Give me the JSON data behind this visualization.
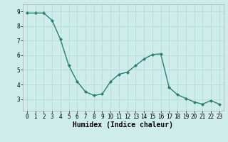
{
  "x": [
    0,
    1,
    2,
    3,
    4,
    5,
    6,
    7,
    8,
    9,
    10,
    11,
    12,
    13,
    14,
    15,
    16,
    17,
    18,
    19,
    20,
    21,
    22,
    23
  ],
  "y": [
    8.9,
    8.9,
    8.9,
    8.4,
    7.1,
    5.3,
    4.2,
    3.5,
    3.25,
    3.35,
    4.2,
    4.7,
    4.85,
    5.3,
    5.75,
    6.05,
    6.1,
    3.8,
    3.3,
    3.05,
    2.8,
    2.65,
    2.9,
    2.65
  ],
  "xlabel": "Humidex (Indice chaleur)",
  "line_color": "#2e7d6e",
  "marker": "D",
  "marker_size": 2,
  "bg_color": "#ceecea",
  "grid_color": "#b0d8d4",
  "xlim": [
    -0.5,
    23.5
  ],
  "ylim": [
    2.2,
    9.5
  ],
  "yticks": [
    3,
    4,
    5,
    6,
    7,
    8,
    9
  ],
  "xticks": [
    0,
    1,
    2,
    3,
    4,
    5,
    6,
    7,
    8,
    9,
    10,
    11,
    12,
    13,
    14,
    15,
    16,
    17,
    18,
    19,
    20,
    21,
    22,
    23
  ],
  "xtick_labels": [
    "0",
    "1",
    "2",
    "3",
    "4",
    "5",
    "6",
    "7",
    "8",
    "9",
    "10",
    "11",
    "12",
    "13",
    "14",
    "15",
    "16",
    "17",
    "18",
    "19",
    "20",
    "21",
    "22",
    "23"
  ],
  "tick_fontsize": 5.5,
  "xlabel_fontsize": 7,
  "linewidth": 1.0
}
